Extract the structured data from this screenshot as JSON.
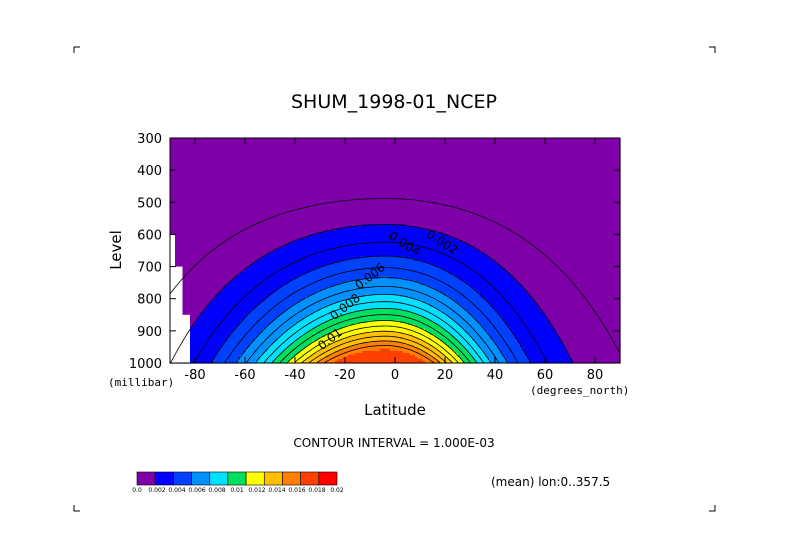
{
  "chart_data": {
    "type": "heatmap",
    "title": "SHUM_1998-01_NCEP",
    "xlabel": "Latitude",
    "xunit": "(degrees_north)",
    "ylabel": "Level",
    "yunit": "(millibar)",
    "xlim": [
      -90,
      90
    ],
    "ylim": [
      1000,
      300
    ],
    "x_ticks": [
      -80,
      -60,
      -40,
      -20,
      0,
      20,
      40,
      60,
      80
    ],
    "y_ticks": [
      300,
      400,
      500,
      600,
      700,
      800,
      900,
      1000
    ],
    "contour_interval_text": "CONTOUR INTERVAL = 1.000E-03",
    "subtitle_mean": "(mean) lon:0..357.5",
    "colorbar": {
      "labels": [
        "0.0",
        "0.002",
        "0.004",
        "0.006",
        "0.008",
        "0.01",
        "0.012",
        "0.014",
        "0.016",
        "0.018",
        "0.02"
      ],
      "colors": [
        "#7f00a8",
        "#0000ff",
        "#0040ff",
        "#0090ff",
        "#00e0ff",
        "#00e060",
        "#ffff00",
        "#ffc000",
        "#ff8000",
        "#ff4000",
        "#ff0000"
      ]
    },
    "contour_labels": [
      {
        "text": "0.002",
        "lat": 18,
        "lev": 635
      },
      {
        "text": "0.004",
        "lat": 3,
        "lev": 640
      },
      {
        "text": "0.006",
        "lat": -9,
        "lev": 740
      },
      {
        "text": "0.008",
        "lat": -19,
        "lev": 835
      },
      {
        "text": "0.01",
        "lat": -25,
        "lev": 935
      }
    ],
    "contour_levels": [
      0.001,
      0.002,
      0.003,
      0.004,
      0.005,
      0.006,
      0.007,
      0.008,
      0.009,
      0.01,
      0.011,
      0.012,
      0.013,
      0.014,
      0.015,
      0.016,
      0.017
    ],
    "fill_bands": [
      {
        "min": 0.0,
        "max": 0.002,
        "color": "#7f00a8"
      },
      {
        "min": 0.002,
        "max": 0.004,
        "color": "#0000ff"
      },
      {
        "min": 0.004,
        "max": 0.006,
        "color": "#0040ff"
      },
      {
        "min": 0.006,
        "max": 0.008,
        "color": "#0090ff"
      },
      {
        "min": 0.008,
        "max": 0.01,
        "color": "#00e0ff"
      },
      {
        "min": 0.01,
        "max": 0.012,
        "color": "#00e060"
      },
      {
        "min": 0.012,
        "max": 0.014,
        "color": "#ffff00"
      },
      {
        "min": 0.014,
        "max": 0.016,
        "color": "#ffc000"
      },
      {
        "min": 0.016,
        "max": 0.018,
        "color": "#ff8000"
      },
      {
        "min": 0.018,
        "max": 0.02,
        "color": "#ff4000"
      }
    ],
    "missing_data": [
      {
        "lat_min": -90,
        "lat_max": -88,
        "lev_min": 600,
        "lev_max": 1000
      },
      {
        "lat_min": -88,
        "lat_max": -85,
        "lev_min": 700,
        "lev_max": 1000
      },
      {
        "lat_min": -85,
        "lat_max": -82,
        "lev_min": 850,
        "lev_max": 1000
      }
    ]
  }
}
